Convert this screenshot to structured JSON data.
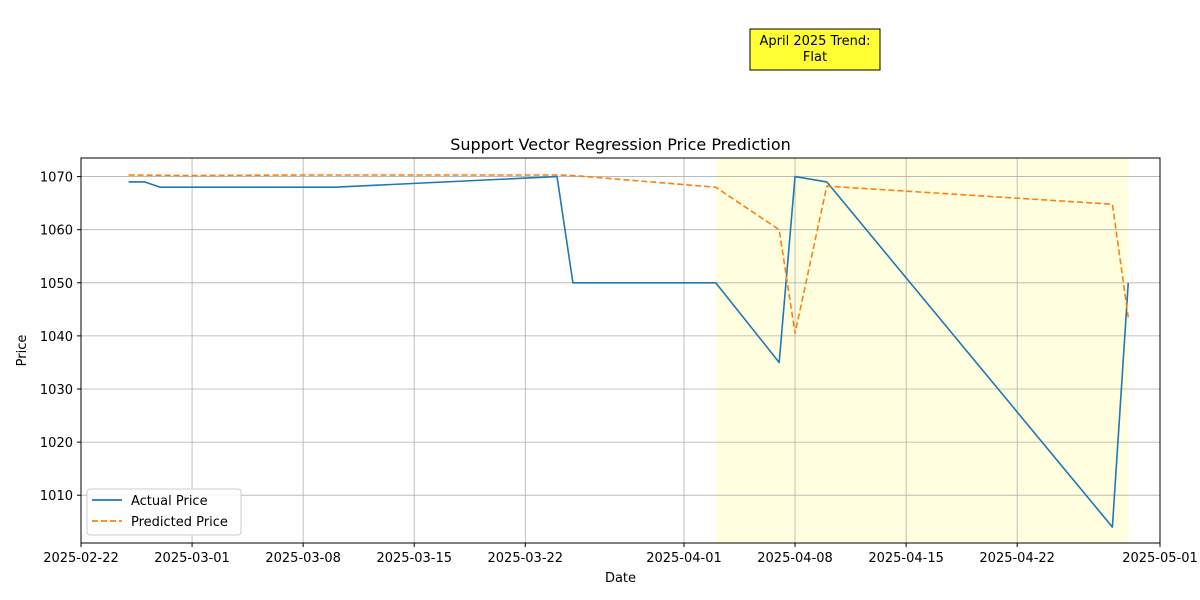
{
  "chart_data": {
    "type": "line",
    "title": "Support Vector Regression Price Prediction",
    "xlabel": "Date",
    "ylabel": "Price",
    "x_axis_type": "date",
    "xlim": [
      "2025-02-22",
      "2025-05-01"
    ],
    "ylim": [
      1001,
      1073.5
    ],
    "x_ticks": [
      "2025-02-22",
      "2025-03-01",
      "2025-03-08",
      "2025-03-15",
      "2025-03-22",
      "2025-04-01",
      "2025-04-08",
      "2025-04-15",
      "2025-04-22",
      "2025-05-01"
    ],
    "y_ticks": [
      1010,
      1020,
      1030,
      1040,
      1050,
      1060,
      1070
    ],
    "grid": true,
    "legend_position": "lower-left",
    "highlight_range": {
      "start": "2025-04-03",
      "end": "2025-04-29",
      "color": "#ffffe0"
    },
    "annotation": {
      "text_lines": [
        "April 2025 Trend:",
        "Flat"
      ],
      "background": "#ffff33"
    },
    "series": [
      {
        "name": "Actual Price",
        "color": "#1f77b4",
        "style": "solid",
        "points": [
          [
            "2025-02-25",
            1069
          ],
          [
            "2025-02-26",
            1069
          ],
          [
            "2025-02-27",
            1068
          ],
          [
            "2025-03-10",
            1068
          ],
          [
            "2025-03-24",
            1070
          ],
          [
            "2025-03-25",
            1050
          ],
          [
            "2025-04-03",
            1050
          ],
          [
            "2025-04-07",
            1035
          ],
          [
            "2025-04-08",
            1070
          ],
          [
            "2025-04-10",
            1069
          ],
          [
            "2025-04-28",
            1004
          ],
          [
            "2025-04-29",
            1050
          ]
        ]
      },
      {
        "name": "Predicted Price",
        "color": "#ff7f0e",
        "style": "dashed",
        "points": [
          [
            "2025-02-25",
            1070.3
          ],
          [
            "2025-03-01",
            1070.2
          ],
          [
            "2025-03-08",
            1070.3
          ],
          [
            "2025-03-15",
            1070.3
          ],
          [
            "2025-03-24",
            1070.3
          ],
          [
            "2025-03-25",
            1070.2
          ],
          [
            "2025-04-03",
            1068
          ],
          [
            "2025-04-07",
            1060
          ],
          [
            "2025-04-08",
            1040.5
          ],
          [
            "2025-04-10",
            1068.2
          ],
          [
            "2025-04-28",
            1064.8
          ],
          [
            "2025-04-29",
            1043.5
          ]
        ]
      }
    ]
  }
}
